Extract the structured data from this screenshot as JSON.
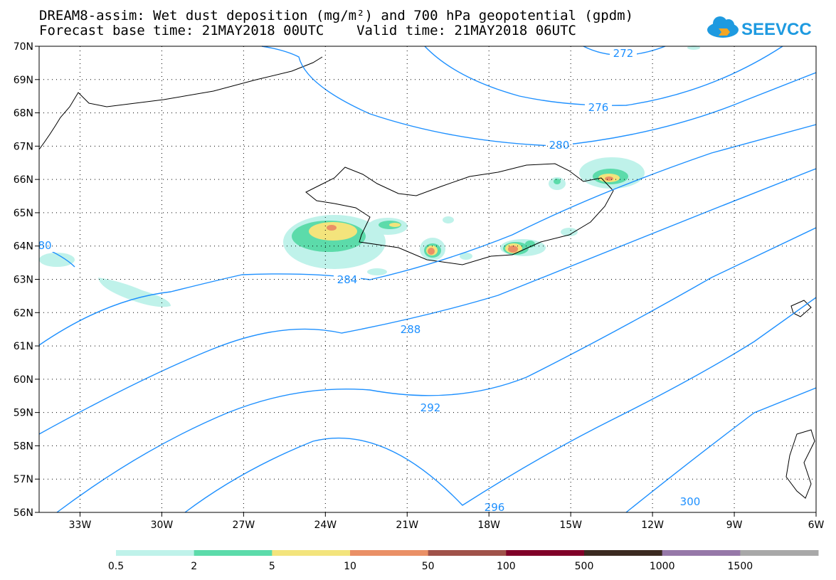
{
  "title_line1": "DREAM8-assim: Wet dust deposition (mg/m²) and 700 hPa geopotential (gpdm)",
  "title_line2": "Forecast base time: 21MAY2018 00UTC    Valid time: 21MAY2018 06UTC",
  "logo_text": "SEEVCCC",
  "map": {
    "lon_range": [
      -34.5,
      -6
    ],
    "lat_range": [
      56,
      70
    ],
    "lon_ticks": [
      {
        "value": -33,
        "label": "33W"
      },
      {
        "value": -30,
        "label": "30W"
      },
      {
        "value": -27,
        "label": "27W"
      },
      {
        "value": -24,
        "label": "24W"
      },
      {
        "value": -21,
        "label": "21W"
      },
      {
        "value": -18,
        "label": "18W"
      },
      {
        "value": -15,
        "label": "15W"
      },
      {
        "value": -12,
        "label": "12W"
      },
      {
        "value": -9,
        "label": "9W"
      },
      {
        "value": -6,
        "label": "6W"
      }
    ],
    "lat_ticks": [
      {
        "value": 70,
        "label": "70N"
      },
      {
        "value": 69,
        "label": "69N"
      },
      {
        "value": 68,
        "label": "68N"
      },
      {
        "value": 67,
        "label": "67N"
      },
      {
        "value": 66,
        "label": "66N"
      },
      {
        "value": 65,
        "label": "65N"
      },
      {
        "value": 64,
        "label": "64N"
      },
      {
        "value": 63,
        "label": "63N"
      },
      {
        "value": 62,
        "label": "62N"
      },
      {
        "value": 61,
        "label": "61N"
      },
      {
        "value": 60,
        "label": "60N"
      },
      {
        "value": 59,
        "label": "59N"
      },
      {
        "value": 58,
        "label": "58N"
      },
      {
        "value": 57,
        "label": "57N"
      },
      {
        "value": 56,
        "label": "56N"
      }
    ],
    "contour_color": "#1e90ff",
    "contour_labels": [
      "272",
      "276",
      "280",
      "80",
      "284",
      "288",
      "292",
      "296",
      "300"
    ]
  },
  "legend": {
    "colors": [
      "#bff2ea",
      "#5cdbaa",
      "#f3e47c",
      "#ea9066",
      "#a0524a",
      "#800028",
      "#3b2a20",
      "#9678a8",
      "#a8a8a8"
    ],
    "labels": [
      "0.5",
      "2",
      "5",
      "10",
      "50",
      "100",
      "500",
      "1000",
      "1500"
    ]
  }
}
